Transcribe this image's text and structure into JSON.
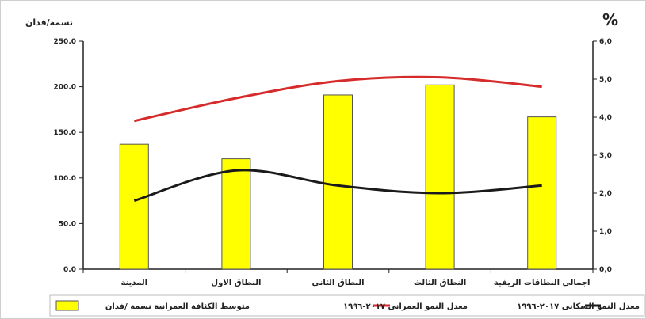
{
  "chart_data": {
    "type": "bar",
    "categories": [
      "المدينة",
      "النطاق الاول",
      "النطاق الثانى",
      "النطاق الثالث",
      "اجمالى النطاقات الريفية"
    ],
    "series": [
      {
        "name": "متوسط الكثافة العمرانية نسمة /فدان",
        "type": "bar",
        "axis": "left",
        "values": [
          137,
          121,
          191,
          202,
          167
        ]
      },
      {
        "name": "معدل النمو العمرانى ٢٠١٧-١٩٩٦",
        "type": "line",
        "axis": "right",
        "values": [
          3.9,
          4.5,
          4.95,
          5.05,
          4.8
        ]
      },
      {
        "name": "معدل النمو السكانى ٢٠١٧-١٩٩٦",
        "type": "line",
        "axis": "right",
        "values": [
          1.8,
          2.6,
          2.2,
          2.0,
          2.2
        ]
      }
    ],
    "ylabel": "نسمة/فدان",
    "y2label": "%",
    "ylim": [
      0,
      250
    ],
    "y2lim": [
      0,
      6
    ],
    "yticks": [
      "0.0",
      "50.0",
      "100.0",
      "150.0",
      "200.0",
      "250.0"
    ],
    "y2ticks": [
      "0,0",
      "1,0",
      "2,0",
      "3,0",
      "4,0",
      "5,0",
      "6,0"
    ],
    "colors": {
      "bar": "#ffff00",
      "bar_stroke": "#555555",
      "urban_line": "#d62b2b",
      "pop_line": "#1a1a1a"
    },
    "grid": false,
    "legend": "bottom"
  }
}
